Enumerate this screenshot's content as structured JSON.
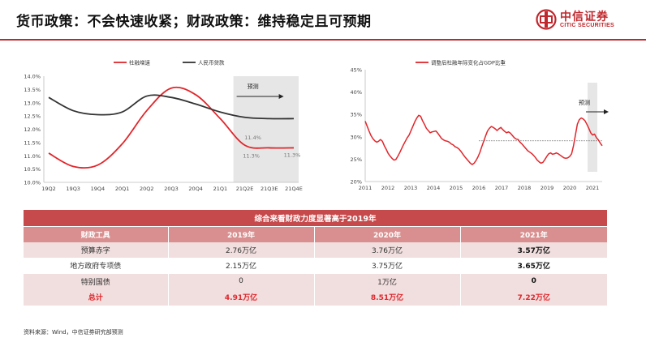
{
  "header": {
    "title": "货币政策：不会快速收紧；财政政策：维持稳定且可预期",
    "logo_cn": "中信证券",
    "logo_en": "CITIC SECURITIES"
  },
  "colors": {
    "brand_red": "#c0282d",
    "series_red": "#e0262b",
    "series_dark": "#333333",
    "forecast_band": "#e6e6e6"
  },
  "chart_data": [
    {
      "type": "line",
      "categories": [
        "19Q2",
        "19Q3",
        "19Q4",
        "20Q1",
        "20Q2",
        "20Q3",
        "20Q4",
        "21Q1",
        "21Q2E",
        "21Q3E",
        "21Q4E"
      ],
      "series": [
        {
          "name": "社融增速",
          "color": "#e0262b",
          "values": [
            11.1,
            10.6,
            10.65,
            11.45,
            12.7,
            13.55,
            13.3,
            12.4,
            11.4,
            11.3,
            11.3
          ]
        },
        {
          "name": "人民币贷款",
          "color": "#333333",
          "values": [
            13.2,
            12.7,
            12.55,
            12.65,
            13.25,
            13.2,
            12.95,
            12.65,
            12.45,
            12.4,
            12.4
          ]
        }
      ],
      "annotations": [
        {
          "text": "11.4%"
        },
        {
          "text": "11.3%"
        },
        {
          "text": "11.3%"
        }
      ],
      "forecast_label": "预测",
      "ylim": [
        10.0,
        14.0
      ],
      "yticks": [
        "10.0%",
        "10.5%",
        "11.0%",
        "11.5%",
        "12.0%",
        "12.5%",
        "13.0%",
        "13.5%",
        "14.0%"
      ],
      "legend_position": "top-center",
      "grid": false
    },
    {
      "type": "line",
      "x_labels": [
        "2011",
        "2012",
        "2013",
        "2014",
        "2015",
        "2016",
        "2017",
        "2018",
        "2019",
        "2020",
        "2021"
      ],
      "series": [
        {
          "name": "调整后社融年际变化占GDP比重",
          "color": "#e0262b",
          "values": [
            33.5,
            32.4,
            31.3,
            30.3,
            29.6,
            29.1,
            28.8,
            29.0,
            29.4,
            29.0,
            28.0,
            27.2,
            26.3,
            25.7,
            25.2,
            24.8,
            24.9,
            25.6,
            26.4,
            27.3,
            28.2,
            29.0,
            29.8,
            30.4,
            31.4,
            32.4,
            33.4,
            34.2,
            34.8,
            34.6,
            33.6,
            32.8,
            31.9,
            31.4,
            30.9,
            31.1,
            31.2,
            31.3,
            30.8,
            30.2,
            29.6,
            29.3,
            29.1,
            29.0,
            28.8,
            28.4,
            28.2,
            27.8,
            27.6,
            27.3,
            26.8,
            26.2,
            25.6,
            25.1,
            24.6,
            24.1,
            23.8,
            24.1,
            24.7,
            25.5,
            26.5,
            27.8,
            29.0,
            30.2,
            31.3,
            31.9,
            32.3,
            32.1,
            31.8,
            31.4,
            31.8,
            32.1,
            31.6,
            31.2,
            30.9,
            31.1,
            30.8,
            30.3,
            29.8,
            29.5,
            29.4,
            28.8,
            28.4,
            27.9,
            27.4,
            26.9,
            26.6,
            26.3,
            25.9,
            25.4,
            24.8,
            24.4,
            24.1,
            24.3,
            24.9,
            25.6,
            26.2,
            26.4,
            26.1,
            26.2,
            26.4,
            26.2,
            25.9,
            25.6,
            25.3,
            25.2,
            25.3,
            25.6,
            26.2,
            28.0,
            30.4,
            32.8,
            33.8,
            34.2,
            34.0,
            33.6,
            32.8,
            31.9,
            30.9,
            30.4,
            30.6,
            29.8,
            29.3,
            28.6,
            28.0
          ]
        },
        {
          "name": "",
          "color": "#555555",
          "style": "dotted",
          "values": [
            29.1
          ]
        }
      ],
      "forecast_label": "预测",
      "ylim": [
        20,
        45
      ],
      "yticks": [
        "20%",
        "25%",
        "30%",
        "35%",
        "40%",
        "45%"
      ],
      "legend_position": "top-center",
      "grid": false
    }
  ],
  "table": {
    "title": "综合来看财政力度显著高于2019年",
    "headers": [
      "财政工具",
      "2019年",
      "2020年",
      "2021年"
    ],
    "rows": [
      {
        "label": "预算赤字",
        "v2019": "2.76万亿",
        "v2020": "3.76万亿",
        "v2021": "3.57万亿"
      },
      {
        "label": "地方政府专项债",
        "v2019": "2.15万亿",
        "v2020": "3.75万亿",
        "v2021": "3.65万亿"
      },
      {
        "label": "特别国债",
        "v2019": "0",
        "v2020": "1万亿",
        "v2021": "0"
      },
      {
        "label": "总计",
        "v2019": "4.91万亿",
        "v2020": "8.51万亿",
        "v2021": "7.22万亿"
      }
    ]
  },
  "source": "资料来源：Wind，中信证券研究部预测"
}
